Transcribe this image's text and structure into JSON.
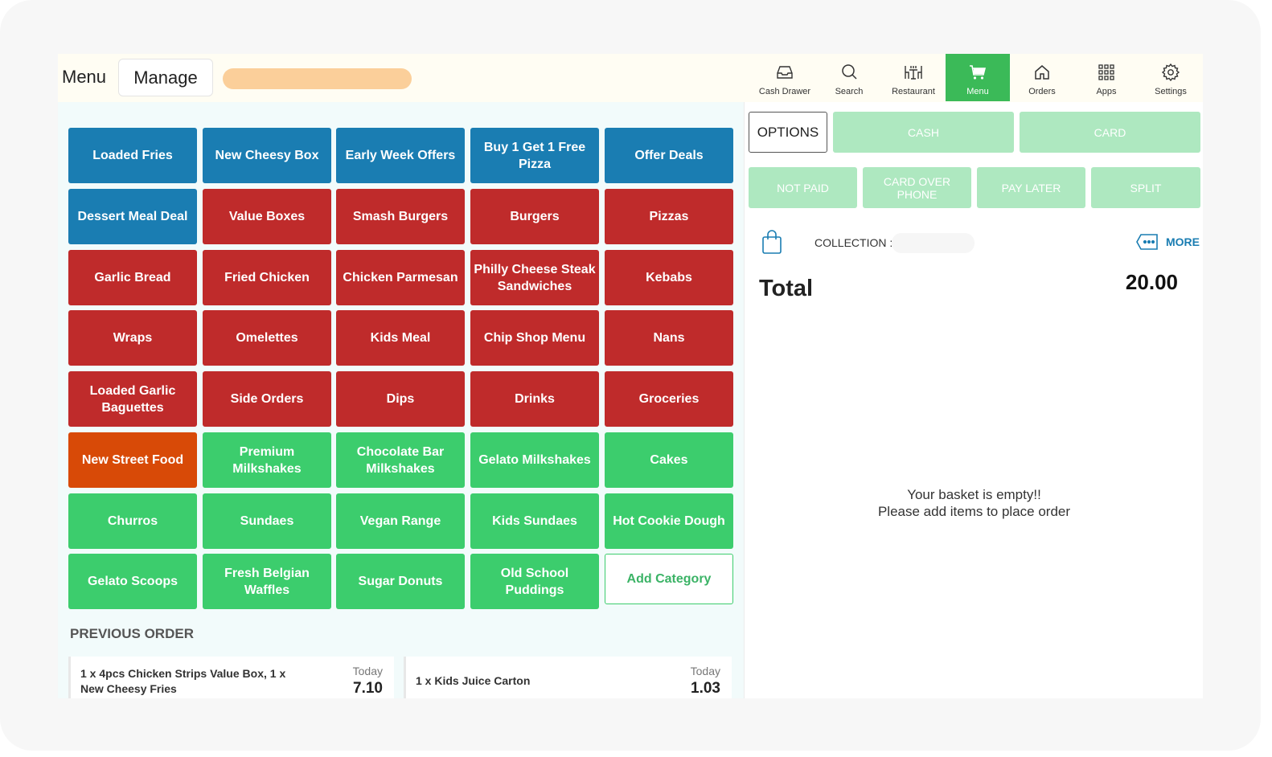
{
  "header": {
    "title": "Menu",
    "manage_label": "Manage",
    "nav": [
      {
        "label": "Cash Drawer",
        "icon": "cash-drawer-icon"
      },
      {
        "label": "Search",
        "icon": "search-icon"
      },
      {
        "label": "Restaurant",
        "icon": "restaurant-icon"
      },
      {
        "label": "Menu",
        "icon": "cart-icon",
        "active": true
      },
      {
        "label": "Orders",
        "icon": "home-icon"
      },
      {
        "label": "Apps",
        "icon": "apps-grid-icon"
      },
      {
        "label": "Settings",
        "icon": "gear-icon"
      }
    ]
  },
  "categories": [
    {
      "label": "Loaded Fries",
      "color": "blue"
    },
    {
      "label": "New Cheesy Box",
      "color": "blue"
    },
    {
      "label": "Early Week Offers",
      "color": "blue"
    },
    {
      "label": "Buy 1 Get 1 Free Pizza",
      "color": "blue"
    },
    {
      "label": "Offer Deals",
      "color": "blue"
    },
    {
      "label": "Dessert Meal Deal",
      "color": "blue"
    },
    {
      "label": "Value Boxes",
      "color": "red"
    },
    {
      "label": "Smash Burgers",
      "color": "red"
    },
    {
      "label": "Burgers",
      "color": "red"
    },
    {
      "label": "Pizzas",
      "color": "red"
    },
    {
      "label": "Garlic Bread",
      "color": "red"
    },
    {
      "label": "Fried Chicken",
      "color": "red"
    },
    {
      "label": "Chicken Parmesan",
      "color": "red"
    },
    {
      "label": "Philly Cheese Steak Sandwiches",
      "color": "red"
    },
    {
      "label": "Kebabs",
      "color": "red"
    },
    {
      "label": "Wraps",
      "color": "red"
    },
    {
      "label": "Omelettes",
      "color": "red"
    },
    {
      "label": "Kids Meal",
      "color": "red"
    },
    {
      "label": "Chip Shop Menu",
      "color": "red"
    },
    {
      "label": "Nans",
      "color": "red"
    },
    {
      "label": "Loaded Garlic Baguettes",
      "color": "red"
    },
    {
      "label": "Side Orders",
      "color": "red"
    },
    {
      "label": "Dips",
      "color": "red"
    },
    {
      "label": "Drinks",
      "color": "red"
    },
    {
      "label": "Groceries",
      "color": "red"
    },
    {
      "label": "New Street Food",
      "color": "orange"
    },
    {
      "label": "Premium Milkshakes",
      "color": "green"
    },
    {
      "label": "Chocolate Bar Milkshakes",
      "color": "green"
    },
    {
      "label": "Gelato Milkshakes",
      "color": "green"
    },
    {
      "label": "Cakes",
      "color": "green"
    },
    {
      "label": "Churros",
      "color": "green"
    },
    {
      "label": "Sundaes",
      "color": "green"
    },
    {
      "label": "Vegan Range",
      "color": "green"
    },
    {
      "label": "Kids Sundaes",
      "color": "green"
    },
    {
      "label": "Hot Cookie Dough",
      "color": "green"
    },
    {
      "label": "Gelato Scoops",
      "color": "green"
    },
    {
      "label": "Fresh Belgian Waffles",
      "color": "green"
    },
    {
      "label": "Sugar Donuts",
      "color": "green"
    },
    {
      "label": "Old School Puddings",
      "color": "green"
    }
  ],
  "add_category_label": "Add Category",
  "previous_order": {
    "title": "PREVIOUS ORDER",
    "orders": [
      {
        "items": "1 x 4pcs Chicken Strips Value Box, 1 x New Cheesy Fries",
        "date": "Today",
        "amount": "7.10"
      },
      {
        "items": "1 x Kids Juice Carton",
        "date": "Today",
        "amount": "1.03"
      }
    ]
  },
  "checkout": {
    "options_label": "OPTIONS",
    "cash_label": "CASH",
    "card_label": "CARD",
    "not_paid_label": "NOT PAID",
    "card_over_phone_label": "CARD OVER PHONE",
    "pay_later_label": "PAY LATER",
    "split_label": "SPLIT",
    "collection_label": "COLLECTION :",
    "more_label": "MORE",
    "total_label": "Total",
    "total_value": "20.00",
    "empty_line1": "Your basket is empty!!",
    "empty_line2": "Please add items to place order"
  },
  "colors": {
    "blue": "#1a7db2",
    "red": "#bf2b2b",
    "orange": "#d84a07",
    "green": "#3ccd6d",
    "active_nav": "#3bba58",
    "disabled_pay": "#aee8c0",
    "search_pill": "#fbcf9a"
  }
}
